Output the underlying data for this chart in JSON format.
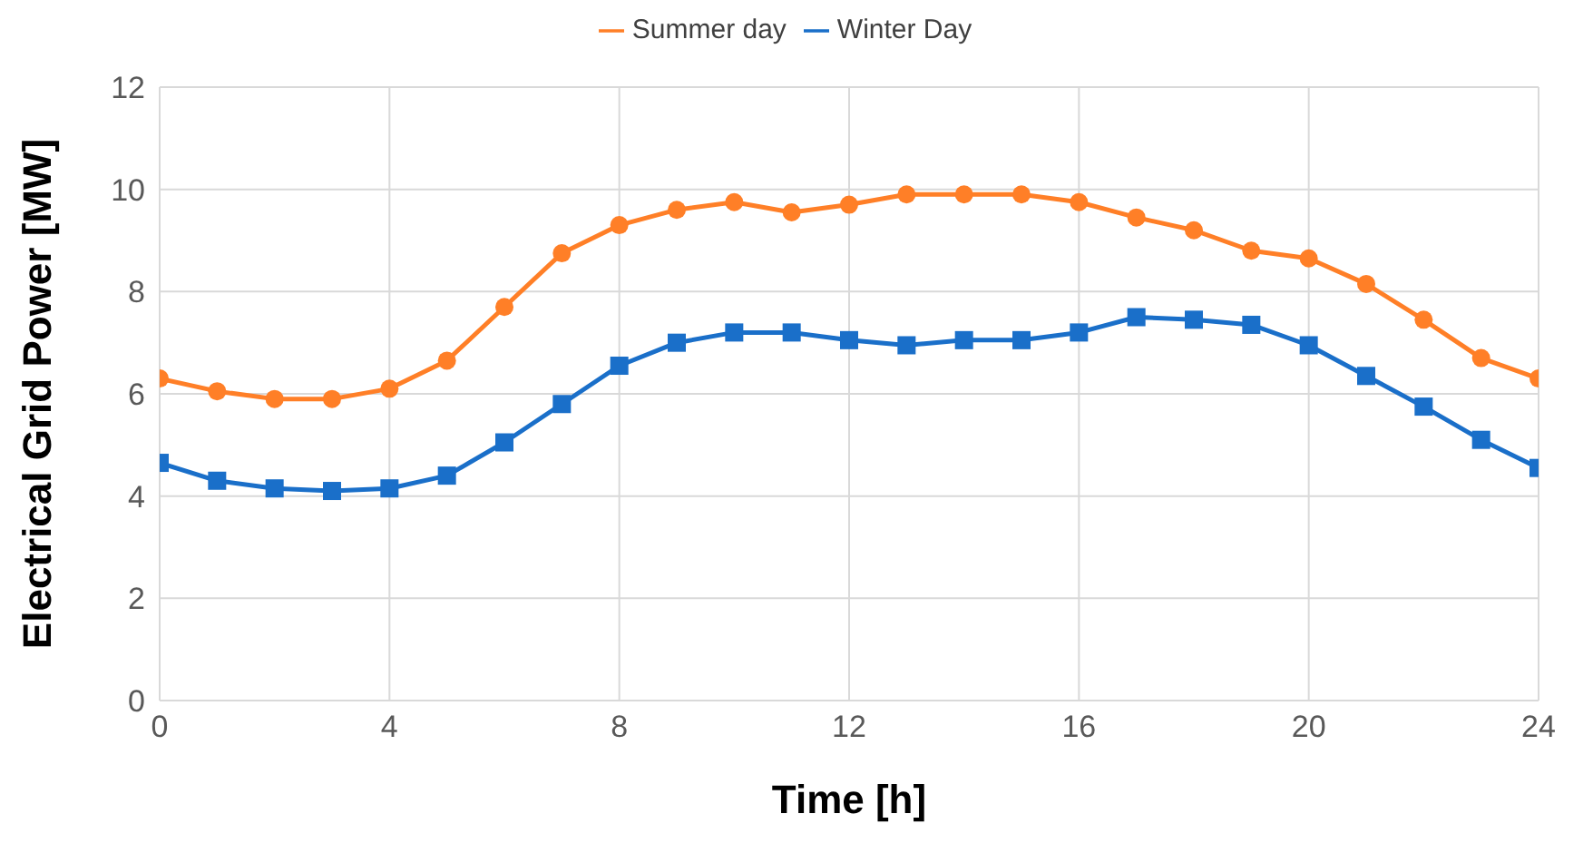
{
  "chart_data": {
    "type": "line",
    "xlabel": "Time [h]",
    "ylabel": "Electrical Grid Power [MW]",
    "x": [
      0,
      1,
      2,
      3,
      4,
      5,
      6,
      7,
      8,
      9,
      10,
      11,
      12,
      13,
      14,
      15,
      16,
      17,
      18,
      19,
      20,
      21,
      22,
      23,
      24
    ],
    "series": [
      {
        "name": "Summer day",
        "color": "#ff7f27",
        "marker": "circle",
        "values": [
          6.3,
          6.05,
          5.9,
          5.9,
          6.1,
          6.65,
          7.7,
          8.75,
          9.3,
          9.6,
          9.75,
          9.55,
          9.7,
          9.9,
          9.9,
          9.9,
          9.75,
          9.45,
          9.2,
          8.8,
          8.65,
          8.15,
          7.45,
          6.7,
          6.3
        ]
      },
      {
        "name": "Winter Day",
        "color": "#1a6fc9",
        "marker": "square",
        "values": [
          4.65,
          4.3,
          4.15,
          4.1,
          4.15,
          4.4,
          5.05,
          5.8,
          6.55,
          7.0,
          7.2,
          7.2,
          7.05,
          6.95,
          7.05,
          7.05,
          7.2,
          7.5,
          7.45,
          7.35,
          6.95,
          6.35,
          5.75,
          5.1,
          4.55
        ]
      }
    ],
    "xlim": [
      0,
      24
    ],
    "xticks": [
      0,
      4,
      8,
      12,
      16,
      20,
      24
    ],
    "ylim": [
      0,
      12
    ],
    "yticks": [
      0,
      2,
      4,
      6,
      8,
      10,
      12
    ],
    "grid": true,
    "legend": "top"
  }
}
